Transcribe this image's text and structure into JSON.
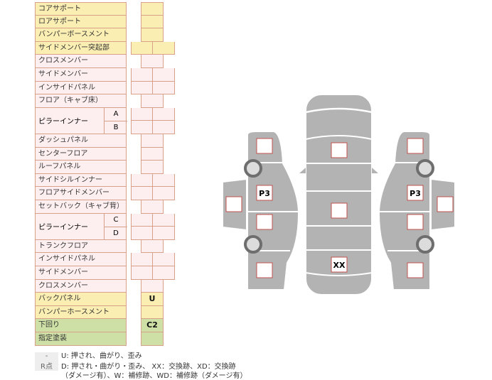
{
  "rows": [
    {
      "label": "コアサポート",
      "kind": "single",
      "color": "y"
    },
    {
      "label": "ロアサポート",
      "kind": "single",
      "color": "y"
    },
    {
      "label": "バンパーボースメント",
      "kind": "single",
      "color": "y"
    },
    {
      "label": "サイドメンバー突起部",
      "kind": "double",
      "color": "y"
    },
    {
      "label": "クロスメンバー",
      "kind": "single",
      "color": "p"
    },
    {
      "label": "サイドメンバー",
      "kind": "double",
      "color": "p"
    },
    {
      "label": "インサイドパネル",
      "kind": "double",
      "color": "p"
    },
    {
      "label": "フロア（キャブ床）",
      "kind": "single",
      "color": "p"
    },
    {
      "label": "ピラーインナー",
      "kind": "pillar",
      "subs": [
        "A",
        "B"
      ],
      "color": "p"
    },
    {
      "label": "ダッシュパネル",
      "kind": "single",
      "color": "p"
    },
    {
      "label": "センターフロア",
      "kind": "single",
      "color": "p"
    },
    {
      "label": "ルーフパネル",
      "kind": "single",
      "color": "p"
    },
    {
      "label": "サイドシルインナー",
      "kind": "double",
      "color": "p"
    },
    {
      "label": "フロアサイドメンバー",
      "kind": "double",
      "color": "p"
    },
    {
      "label": "セットバック（キャブ背）",
      "kind": "single",
      "color": "p"
    },
    {
      "label": "ピラーインナー",
      "kind": "pillar",
      "subs": [
        "C",
        "D"
      ],
      "color": "p"
    },
    {
      "label": "トランクフロア",
      "kind": "single",
      "color": "p"
    },
    {
      "label": "インサイドパネル",
      "kind": "double",
      "color": "p"
    },
    {
      "label": "サイドメンバー",
      "kind": "double",
      "color": "p"
    },
    {
      "label": "クロスメンバー",
      "kind": "single",
      "color": "p"
    },
    {
      "label": "バックパネル",
      "kind": "single",
      "color": "y",
      "value": "U"
    },
    {
      "label": "バンパーホースメント",
      "kind": "single",
      "color": "y"
    },
    {
      "label": "下回り",
      "kind": "single",
      "color": "g",
      "value": "C2"
    },
    {
      "label": "指定塗装",
      "kind": "single",
      "color": "g"
    }
  ],
  "legend": {
    "key1": "-",
    "text1": "U: 押され、曲がり、歪み",
    "key2": "R点",
    "text2": "D: 押され・曲がり・歪み、 XX：交換跡、XD：交換跡",
    "text3": "（ダメージ有）、W：補修跡、WD：補修跡（ダメージ有）"
  },
  "diagram": {
    "marks": [
      {
        "id": "left-front-fender",
        "value": ""
      },
      {
        "id": "left-front-door",
        "value": "P3"
      },
      {
        "id": "left-mirror",
        "value": ""
      },
      {
        "id": "left-rear-door",
        "value": ""
      },
      {
        "id": "left-rear-fender",
        "value": ""
      },
      {
        "id": "hood",
        "value": ""
      },
      {
        "id": "roof",
        "value": ""
      },
      {
        "id": "trunk",
        "value": "XX"
      },
      {
        "id": "right-front-fender",
        "value": ""
      },
      {
        "id": "right-front-door",
        "value": "P3"
      },
      {
        "id": "right-mirror",
        "value": ""
      },
      {
        "id": "right-rear-door",
        "value": ""
      },
      {
        "id": "right-rear-fender",
        "value": ""
      }
    ],
    "colors": {
      "body": "#b3b3b3",
      "mark_border": "#c0504d",
      "wheel": "#6e6e6e",
      "hub": "#dcdcdc"
    }
  }
}
